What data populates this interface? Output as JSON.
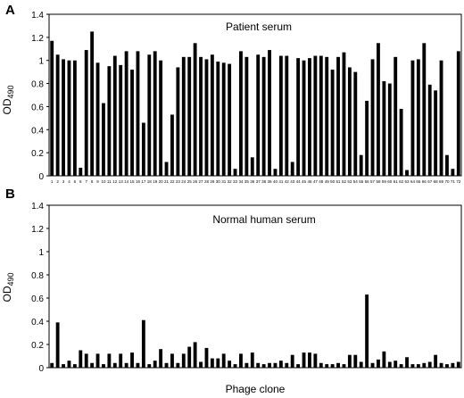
{
  "figure": {
    "ylabel": "OD490",
    "xlabel": "Phage clone"
  },
  "chart_data": [
    {
      "type": "bar",
      "panel_label": "A",
      "title": "Patient serum",
      "ylabel": "OD490",
      "xlabel": "",
      "ylim": [
        0,
        1.4
      ],
      "yticks": [
        0,
        0.2,
        0.4,
        0.6,
        0.8,
        1,
        1.2,
        1.4
      ],
      "categories": [
        "1",
        "2",
        "3",
        "4",
        "5",
        "6",
        "7",
        "8",
        "9",
        "10",
        "11",
        "12",
        "13",
        "14",
        "15",
        "16",
        "17",
        "18",
        "19",
        "20",
        "21",
        "22",
        "23",
        "24",
        "25",
        "26",
        "27",
        "28",
        "29",
        "30",
        "31",
        "32",
        "33",
        "34",
        "35",
        "36",
        "37",
        "38",
        "39",
        "40",
        "41",
        "42",
        "43",
        "44",
        "45",
        "46",
        "47",
        "48",
        "49",
        "50",
        "51",
        "52",
        "53",
        "54",
        "55",
        "56",
        "57",
        "58",
        "59",
        "60",
        "61",
        "62",
        "63",
        "64",
        "65",
        "66",
        "67",
        "68",
        "69",
        "70",
        "71",
        "72"
      ],
      "values": [
        1.17,
        1.05,
        1.01,
        1.0,
        1.0,
        0.07,
        1.09,
        1.25,
        0.98,
        0.63,
        0.95,
        1.04,
        0.96,
        1.08,
        0.92,
        1.08,
        0.46,
        1.05,
        1.08,
        1.0,
        0.12,
        0.53,
        0.94,
        1.03,
        1.03,
        1.15,
        1.03,
        1.01,
        1.05,
        0.99,
        0.98,
        0.97,
        0.06,
        1.08,
        1.03,
        0.16,
        1.05,
        1.03,
        1.09,
        0.06,
        1.04,
        1.04,
        0.12,
        1.02,
        1.0,
        1.02,
        1.04,
        1.04,
        1.03,
        0.92,
        1.03,
        1.07,
        0.94,
        0.9,
        0.18,
        0.65,
        1.01,
        1.15,
        0.82,
        0.8,
        1.03,
        0.58,
        0.05,
        1.0,
        1.01,
        1.15,
        0.79,
        0.74,
        1.0,
        0.18,
        0.06,
        1.08
      ]
    },
    {
      "type": "bar",
      "panel_label": "B",
      "title": "Normal human serum",
      "ylabel": "OD490",
      "xlabel": "Phage clone",
      "ylim": [
        0,
        1.4
      ],
      "yticks": [
        0,
        0.2,
        0.4,
        0.6,
        0.8,
        1,
        1.2,
        1.4
      ],
      "categories": [
        "1",
        "2",
        "3",
        "4",
        "5",
        "6",
        "7",
        "8",
        "9",
        "10",
        "11",
        "12",
        "13",
        "14",
        "15",
        "16",
        "17",
        "18",
        "19",
        "20",
        "21",
        "22",
        "23",
        "24",
        "25",
        "26",
        "27",
        "28",
        "29",
        "30",
        "31",
        "32",
        "33",
        "34",
        "35",
        "36",
        "37",
        "38",
        "39",
        "40",
        "41",
        "42",
        "43",
        "44",
        "45",
        "46",
        "47",
        "48",
        "49",
        "50",
        "51",
        "52",
        "53",
        "54",
        "55",
        "56",
        "57",
        "58",
        "59",
        "60",
        "61",
        "62",
        "63",
        "64",
        "65",
        "66",
        "67",
        "68",
        "69",
        "70",
        "71",
        "72"
      ],
      "values": [
        0.04,
        0.39,
        0.03,
        0.06,
        0.03,
        0.15,
        0.12,
        0.04,
        0.12,
        0.03,
        0.12,
        0.04,
        0.12,
        0.04,
        0.13,
        0.04,
        0.41,
        0.03,
        0.06,
        0.16,
        0.04,
        0.12,
        0.04,
        0.12,
        0.18,
        0.22,
        0.05,
        0.17,
        0.08,
        0.08,
        0.12,
        0.06,
        0.03,
        0.12,
        0.04,
        0.13,
        0.04,
        0.03,
        0.04,
        0.04,
        0.06,
        0.04,
        0.11,
        0.03,
        0.13,
        0.13,
        0.12,
        0.04,
        0.03,
        0.03,
        0.04,
        0.03,
        0.11,
        0.11,
        0.05,
        0.63,
        0.04,
        0.07,
        0.14,
        0.05,
        0.06,
        0.03,
        0.09,
        0.03,
        0.03,
        0.04,
        0.05,
        0.11,
        0.04,
        0.03,
        0.04,
        0.05
      ]
    }
  ]
}
